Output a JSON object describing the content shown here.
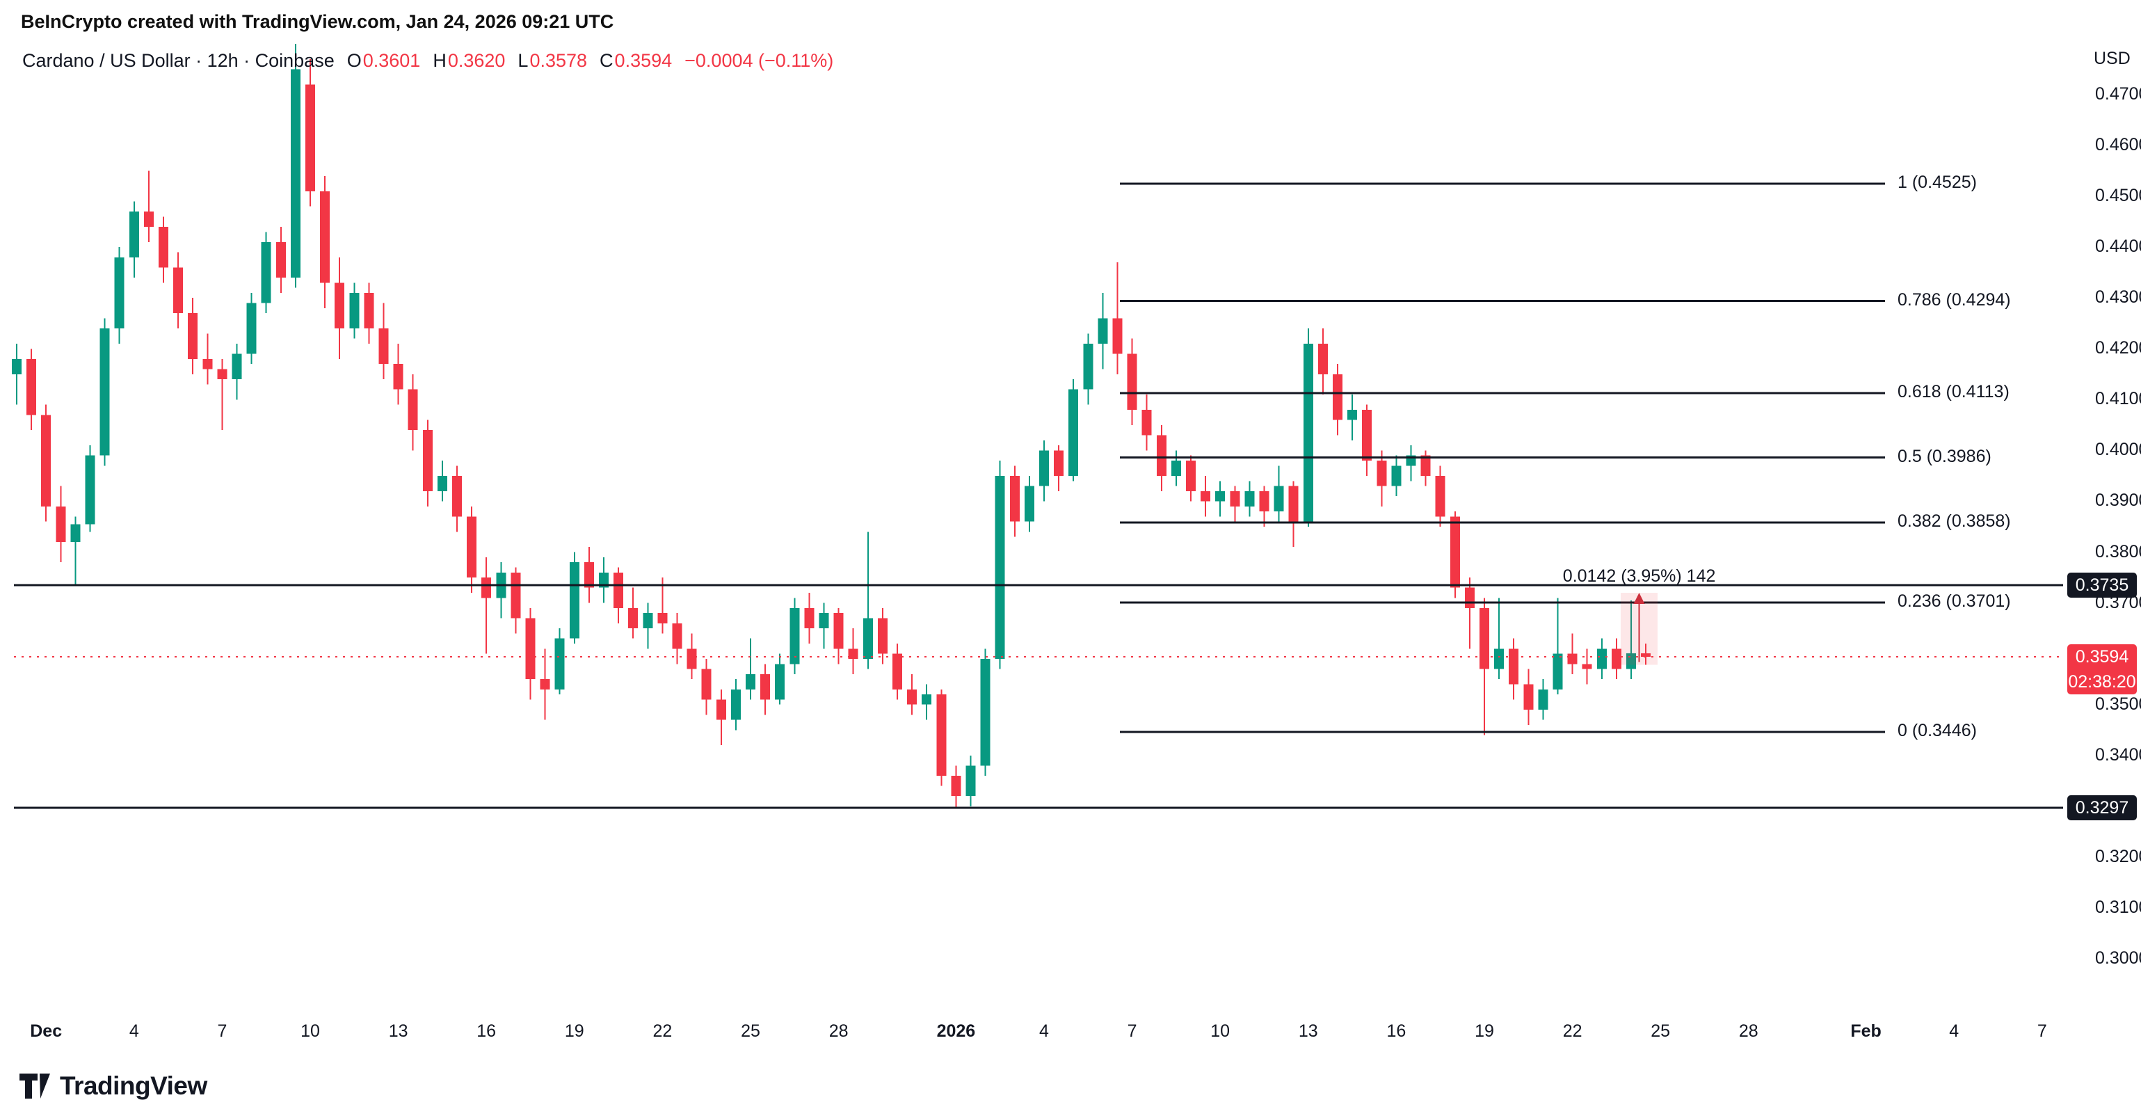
{
  "attribution": "BeInCrypto created with TradingView.com, Jan 24, 2026 09:21 UTC",
  "legend": {
    "title": "Cardano / US Dollar · 12h · Coinbase",
    "ohlc": [
      {
        "label": "O",
        "value": "0.3601"
      },
      {
        "label": "H",
        "value": "0.3620"
      },
      {
        "label": "L",
        "value": "0.3578"
      },
      {
        "label": "C",
        "value": "0.3594"
      }
    ],
    "change": "−0.0004 (−0.11%)"
  },
  "price_axis": {
    "currency": "USD"
  },
  "logo": {
    "text": "TradingView"
  },
  "colors": {
    "up": "#089981",
    "down": "#F23645",
    "line": "#131722",
    "axis_text": "#131722",
    "tag_bg": "#131722",
    "tag_text": "#FFFFFF",
    "measure_fill": "rgba(242,54,69,0.12)",
    "measure_line": "#CC2F3C",
    "background": "#FFFFFF"
  },
  "chart_data": {
    "type": "candlestick",
    "symbol": "Cardano / US Dollar",
    "interval": "12h",
    "exchange": "Coinbase",
    "last": {
      "open": 0.3601,
      "high": 0.362,
      "low": 0.3578,
      "close": 0.3594,
      "change": "−0.0004 (−0.11%)"
    },
    "price_scale": {
      "ticks": [
        "0.4700",
        "0.4600",
        "0.4500",
        "0.4400",
        "0.4300",
        "0.4200",
        "0.4100",
        "0.4000",
        "0.3900",
        "0.3800",
        "0.3700",
        "0.3500",
        "0.3400",
        "0.3200",
        "0.3100",
        "0.3000"
      ]
    },
    "time_scale": {
      "ticks": [
        {
          "label": "Dec",
          "index": 2,
          "bold": true
        },
        {
          "label": "4",
          "index": 8,
          "bold": false
        },
        {
          "label": "7",
          "index": 14,
          "bold": false
        },
        {
          "label": "10",
          "index": 20,
          "bold": false
        },
        {
          "label": "13",
          "index": 26,
          "bold": false
        },
        {
          "label": "16",
          "index": 32,
          "bold": false
        },
        {
          "label": "19",
          "index": 38,
          "bold": false
        },
        {
          "label": "22",
          "index": 44,
          "bold": false
        },
        {
          "label": "25",
          "index": 50,
          "bold": false
        },
        {
          "label": "28",
          "index": 56,
          "bold": false
        },
        {
          "label": "2026",
          "index": 64,
          "bold": true
        },
        {
          "label": "4",
          "index": 70,
          "bold": false
        },
        {
          "label": "7",
          "index": 76,
          "bold": false
        },
        {
          "label": "10",
          "index": 82,
          "bold": false
        },
        {
          "label": "13",
          "index": 88,
          "bold": false
        },
        {
          "label": "16",
          "index": 94,
          "bold": false
        },
        {
          "label": "19",
          "index": 100,
          "bold": false
        },
        {
          "label": "22",
          "index": 106,
          "bold": false
        },
        {
          "label": "25",
          "index": 112,
          "bold": false
        },
        {
          "label": "28",
          "index": 118,
          "bold": false
        },
        {
          "label": "Feb",
          "index": 126,
          "bold": true
        },
        {
          "label": "4",
          "index": 132,
          "bold": false
        },
        {
          "label": "7",
          "index": 138,
          "bold": false
        }
      ]
    },
    "fib_levels": [
      {
        "label": "1 (0.4525)",
        "value": 0.4525
      },
      {
        "label": "0.786 (0.4294)",
        "value": 0.4294
      },
      {
        "label": "0.618 (0.4113)",
        "value": 0.4113
      },
      {
        "label": "0.5 (0.3986)",
        "value": 0.3986
      },
      {
        "label": "0.382 (0.3858)",
        "value": 0.3858
      },
      {
        "label": "0.236 (0.3701)",
        "value": 0.3701
      },
      {
        "label": "0 (0.3446)",
        "value": 0.3446
      }
    ],
    "support_lines": [
      {
        "price": 0.3735,
        "tag": "0.3735"
      },
      {
        "price": 0.3297,
        "tag": "0.3297"
      }
    ],
    "last_price_line": {
      "price": 0.3594,
      "tag": "0.3594",
      "countdown": "02:38:20"
    },
    "measure_tool": {
      "label": "0.0142 (3.95%) 142",
      "from_price": 0.3578,
      "to_price": 0.372,
      "from_index": 109.3,
      "to_index": 111.8
    },
    "candles": [
      [
        0.415,
        0.421,
        0.409,
        0.418
      ],
      [
        0.418,
        0.42,
        0.404,
        0.407
      ],
      [
        0.407,
        0.409,
        0.386,
        0.389
      ],
      [
        0.389,
        0.393,
        0.378,
        0.382
      ],
      [
        0.382,
        0.387,
        0.3735,
        0.3855
      ],
      [
        0.3855,
        0.401,
        0.384,
        0.399
      ],
      [
        0.399,
        0.426,
        0.397,
        0.424
      ],
      [
        0.424,
        0.44,
        0.421,
        0.438
      ],
      [
        0.438,
        0.449,
        0.434,
        0.447
      ],
      [
        0.447,
        0.455,
        0.441,
        0.444
      ],
      [
        0.444,
        0.446,
        0.433,
        0.436
      ],
      [
        0.436,
        0.439,
        0.424,
        0.427
      ],
      [
        0.427,
        0.43,
        0.415,
        0.418
      ],
      [
        0.418,
        0.423,
        0.413,
        0.416
      ],
      [
        0.416,
        0.418,
        0.404,
        0.414
      ],
      [
        0.414,
        0.421,
        0.41,
        0.419
      ],
      [
        0.419,
        0.431,
        0.417,
        0.429
      ],
      [
        0.429,
        0.443,
        0.427,
        0.441
      ],
      [
        0.441,
        0.444,
        0.431,
        0.434
      ],
      [
        0.434,
        0.48,
        0.432,
        0.475
      ],
      [
        0.472,
        0.477,
        0.448,
        0.451
      ],
      [
        0.451,
        0.454,
        0.428,
        0.433
      ],
      [
        0.433,
        0.438,
        0.418,
        0.424
      ],
      [
        0.424,
        0.433,
        0.422,
        0.431
      ],
      [
        0.431,
        0.433,
        0.421,
        0.424
      ],
      [
        0.424,
        0.429,
        0.414,
        0.417
      ],
      [
        0.417,
        0.421,
        0.409,
        0.412
      ],
      [
        0.412,
        0.415,
        0.4,
        0.404
      ],
      [
        0.404,
        0.406,
        0.389,
        0.392
      ],
      [
        0.392,
        0.398,
        0.39,
        0.395
      ],
      [
        0.395,
        0.397,
        0.384,
        0.387
      ],
      [
        0.387,
        0.389,
        0.372,
        0.375
      ],
      [
        0.375,
        0.379,
        0.36,
        0.371
      ],
      [
        0.371,
        0.378,
        0.367,
        0.376
      ],
      [
        0.376,
        0.377,
        0.364,
        0.367
      ],
      [
        0.367,
        0.369,
        0.351,
        0.355
      ],
      [
        0.355,
        0.361,
        0.347,
        0.353
      ],
      [
        0.353,
        0.365,
        0.352,
        0.363
      ],
      [
        0.363,
        0.38,
        0.362,
        0.378
      ],
      [
        0.378,
        0.381,
        0.37,
        0.373
      ],
      [
        0.373,
        0.379,
        0.37,
        0.376
      ],
      [
        0.376,
        0.377,
        0.366,
        0.369
      ],
      [
        0.369,
        0.373,
        0.363,
        0.365
      ],
      [
        0.365,
        0.37,
        0.361,
        0.368
      ],
      [
        0.368,
        0.375,
        0.364,
        0.366
      ],
      [
        0.366,
        0.368,
        0.358,
        0.361
      ],
      [
        0.361,
        0.364,
        0.355,
        0.357
      ],
      [
        0.357,
        0.359,
        0.348,
        0.351
      ],
      [
        0.351,
        0.353,
        0.342,
        0.347
      ],
      [
        0.347,
        0.355,
        0.345,
        0.353
      ],
      [
        0.353,
        0.363,
        0.351,
        0.356
      ],
      [
        0.356,
        0.358,
        0.348,
        0.351
      ],
      [
        0.351,
        0.36,
        0.35,
        0.358
      ],
      [
        0.358,
        0.371,
        0.356,
        0.369
      ],
      [
        0.369,
        0.372,
        0.362,
        0.365
      ],
      [
        0.365,
        0.37,
        0.361,
        0.368
      ],
      [
        0.368,
        0.369,
        0.358,
        0.361
      ],
      [
        0.361,
        0.365,
        0.356,
        0.359
      ],
      [
        0.359,
        0.384,
        0.357,
        0.367
      ],
      [
        0.367,
        0.369,
        0.358,
        0.36
      ],
      [
        0.36,
        0.362,
        0.351,
        0.353
      ],
      [
        0.353,
        0.356,
        0.348,
        0.35
      ],
      [
        0.35,
        0.354,
        0.347,
        0.352
      ],
      [
        0.352,
        0.353,
        0.334,
        0.336
      ],
      [
        0.336,
        0.338,
        0.3297,
        0.332
      ],
      [
        0.332,
        0.34,
        0.33,
        0.338
      ],
      [
        0.338,
        0.361,
        0.336,
        0.359
      ],
      [
        0.359,
        0.398,
        0.357,
        0.395
      ],
      [
        0.395,
        0.397,
        0.383,
        0.386
      ],
      [
        0.386,
        0.395,
        0.384,
        0.393
      ],
      [
        0.393,
        0.402,
        0.39,
        0.4
      ],
      [
        0.4,
        0.401,
        0.392,
        0.395
      ],
      [
        0.395,
        0.414,
        0.394,
        0.412
      ],
      [
        0.412,
        0.423,
        0.409,
        0.421
      ],
      [
        0.421,
        0.431,
        0.416,
        0.426
      ],
      [
        0.426,
        0.437,
        0.415,
        0.419
      ],
      [
        0.419,
        0.422,
        0.405,
        0.408
      ],
      [
        0.408,
        0.411,
        0.4,
        0.403
      ],
      [
        0.403,
        0.405,
        0.392,
        0.395
      ],
      [
        0.395,
        0.4,
        0.393,
        0.398
      ],
      [
        0.398,
        0.399,
        0.39,
        0.392
      ],
      [
        0.392,
        0.395,
        0.387,
        0.39
      ],
      [
        0.39,
        0.394,
        0.387,
        0.392
      ],
      [
        0.392,
        0.393,
        0.386,
        0.389
      ],
      [
        0.389,
        0.394,
        0.387,
        0.392
      ],
      [
        0.392,
        0.393,
        0.385,
        0.388
      ],
      [
        0.388,
        0.397,
        0.386,
        0.393
      ],
      [
        0.393,
        0.394,
        0.381,
        0.386
      ],
      [
        0.386,
        0.424,
        0.385,
        0.421
      ],
      [
        0.421,
        0.424,
        0.411,
        0.415
      ],
      [
        0.415,
        0.417,
        0.403,
        0.406
      ],
      [
        0.406,
        0.411,
        0.402,
        0.408
      ],
      [
        0.408,
        0.409,
        0.395,
        0.398
      ],
      [
        0.398,
        0.4,
        0.389,
        0.393
      ],
      [
        0.393,
        0.399,
        0.391,
        0.397
      ],
      [
        0.397,
        0.401,
        0.394,
        0.399
      ],
      [
        0.399,
        0.4,
        0.393,
        0.395
      ],
      [
        0.395,
        0.397,
        0.385,
        0.387
      ],
      [
        0.387,
        0.388,
        0.371,
        0.373
      ],
      [
        0.373,
        0.375,
        0.361,
        0.369
      ],
      [
        0.369,
        0.371,
        0.344,
        0.357
      ],
      [
        0.357,
        0.371,
        0.355,
        0.361
      ],
      [
        0.361,
        0.363,
        0.351,
        0.354
      ],
      [
        0.354,
        0.357,
        0.346,
        0.349
      ],
      [
        0.349,
        0.355,
        0.347,
        0.353
      ],
      [
        0.353,
        0.371,
        0.352,
        0.36
      ],
      [
        0.36,
        0.364,
        0.356,
        0.358
      ],
      [
        0.358,
        0.361,
        0.354,
        0.357
      ],
      [
        0.357,
        0.363,
        0.355,
        0.361
      ],
      [
        0.361,
        0.363,
        0.355,
        0.357
      ],
      [
        0.357,
        0.3705,
        0.355,
        0.3601
      ],
      [
        0.3601,
        0.362,
        0.3578,
        0.3594
      ]
    ]
  }
}
